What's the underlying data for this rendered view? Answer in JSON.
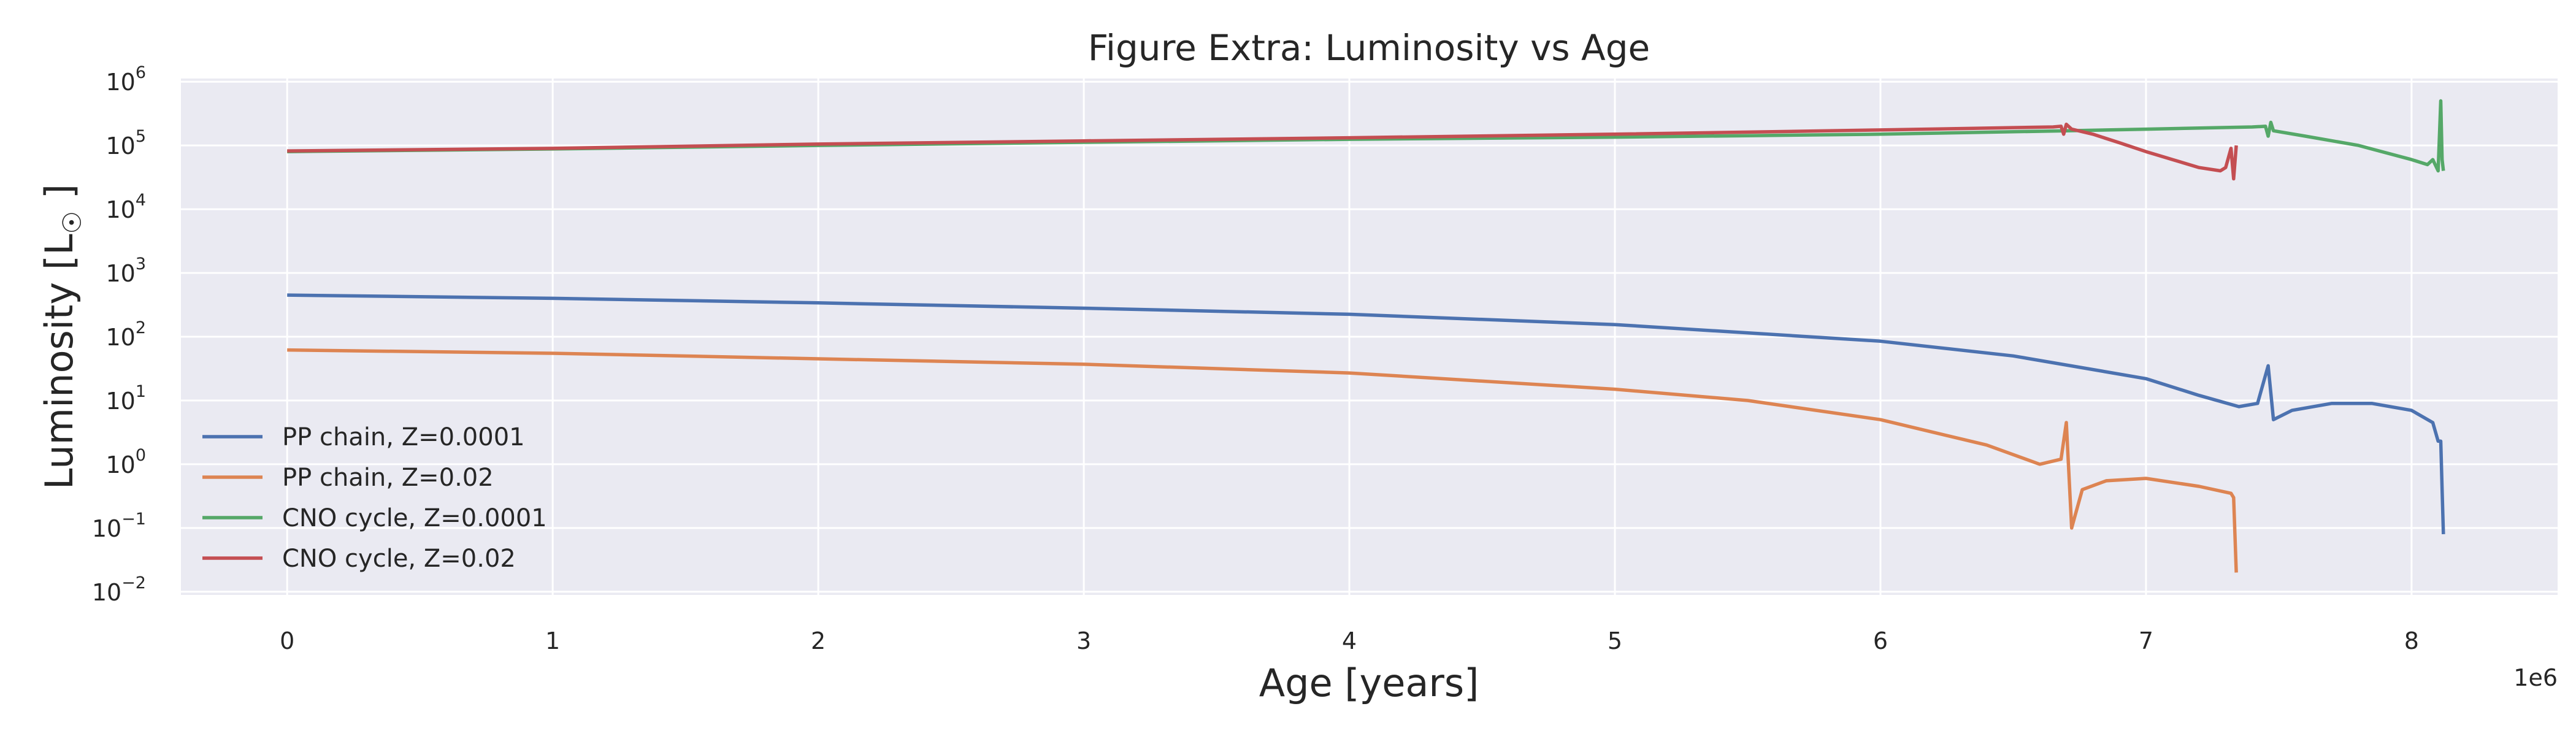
{
  "chart_data": {
    "type": "line",
    "title": "Figure Extra: Luminosity vs Age",
    "xlabel": "Age [years]",
    "ylabel": "Luminosity [L_☉]",
    "x_offset_label": "1e6",
    "xscale": "linear",
    "yscale": "log",
    "xlim": [
      -400000,
      8550000
    ],
    "ylim_exp": [
      -2.05,
      6.05
    ],
    "xticks": [
      0,
      1000000,
      2000000,
      3000000,
      4000000,
      5000000,
      6000000,
      7000000,
      8000000
    ],
    "xtick_labels": [
      "0",
      "1",
      "2",
      "3",
      "4",
      "5",
      "6",
      "7",
      "8"
    ],
    "ytick_exponents": [
      -2,
      -1,
      0,
      1,
      2,
      3,
      4,
      5,
      6
    ],
    "grid": true,
    "legend_position": "lower-left",
    "series": [
      {
        "name": "PP chain, Z=0.0001",
        "color": "#4c72b0",
        "points": [
          [
            0,
            450
          ],
          [
            1000000,
            400
          ],
          [
            2000000,
            340
          ],
          [
            3000000,
            280
          ],
          [
            4000000,
            225
          ],
          [
            5000000,
            155
          ],
          [
            6000000,
            85
          ],
          [
            6500000,
            50
          ],
          [
            7000000,
            22
          ],
          [
            7200000,
            12
          ],
          [
            7350000,
            8
          ],
          [
            7420000,
            9
          ],
          [
            7460000,
            35
          ],
          [
            7480000,
            5
          ],
          [
            7550000,
            7
          ],
          [
            7700000,
            9
          ],
          [
            7850000,
            9
          ],
          [
            8000000,
            7
          ],
          [
            8080000,
            4.5
          ],
          [
            8100000,
            2.3
          ],
          [
            8110000,
            2.3
          ],
          [
            8115000,
            0.4
          ],
          [
            8120000,
            0.08
          ]
        ]
      },
      {
        "name": "PP chain, Z=0.02",
        "color": "#dd8452",
        "points": [
          [
            0,
            62
          ],
          [
            1000000,
            55
          ],
          [
            2000000,
            45
          ],
          [
            3000000,
            37
          ],
          [
            4000000,
            27
          ],
          [
            5000000,
            15
          ],
          [
            5500000,
            10
          ],
          [
            6000000,
            5
          ],
          [
            6400000,
            2
          ],
          [
            6600000,
            1
          ],
          [
            6680000,
            1.2
          ],
          [
            6700000,
            4.5
          ],
          [
            6720000,
            0.1
          ],
          [
            6760000,
            0.4
          ],
          [
            6850000,
            0.55
          ],
          [
            7000000,
            0.6
          ],
          [
            7200000,
            0.45
          ],
          [
            7320000,
            0.35
          ],
          [
            7330000,
            0.3
          ],
          [
            7340000,
            0.02
          ]
        ]
      },
      {
        "name": "CNO cycle, Z=0.0001",
        "color": "#55a868",
        "points": [
          [
            0,
            80000
          ],
          [
            1000000,
            88000
          ],
          [
            2000000,
            100000
          ],
          [
            3000000,
            112000
          ],
          [
            4000000,
            125000
          ],
          [
            5000000,
            135000
          ],
          [
            6000000,
            150000
          ],
          [
            6700000,
            170000
          ],
          [
            7000000,
            180000
          ],
          [
            7400000,
            195000
          ],
          [
            7450000,
            200000
          ],
          [
            7460000,
            140000
          ],
          [
            7470000,
            230000
          ],
          [
            7480000,
            170000
          ],
          [
            7600000,
            140000
          ],
          [
            7800000,
            100000
          ],
          [
            8000000,
            60000
          ],
          [
            8060000,
            50000
          ],
          [
            8080000,
            60000
          ],
          [
            8100000,
            40000
          ],
          [
            8110000,
            500000
          ],
          [
            8115000,
            60000
          ],
          [
            8120000,
            40000
          ]
        ]
      },
      {
        "name": "CNO cycle, Z=0.02",
        "color": "#c44e52",
        "points": [
          [
            0,
            82000
          ],
          [
            1000000,
            90000
          ],
          [
            2000000,
            105000
          ],
          [
            3000000,
            118000
          ],
          [
            4000000,
            132000
          ],
          [
            5000000,
            150000
          ],
          [
            6000000,
            175000
          ],
          [
            6650000,
            195000
          ],
          [
            6680000,
            200000
          ],
          [
            6690000,
            150000
          ],
          [
            6700000,
            215000
          ],
          [
            6720000,
            180000
          ],
          [
            6800000,
            150000
          ],
          [
            6900000,
            110000
          ],
          [
            7000000,
            80000
          ],
          [
            7100000,
            60000
          ],
          [
            7200000,
            45000
          ],
          [
            7280000,
            40000
          ],
          [
            7300000,
            45000
          ],
          [
            7320000,
            90000
          ],
          [
            7330000,
            30000
          ],
          [
            7340000,
            100000
          ]
        ]
      }
    ]
  }
}
